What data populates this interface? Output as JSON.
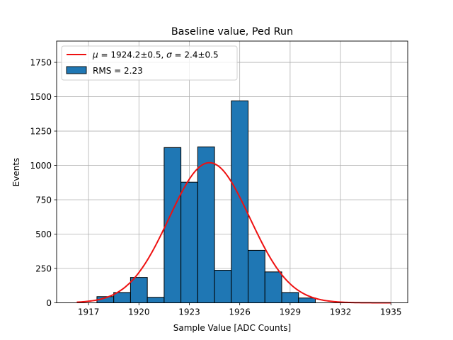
{
  "chart_data": {
    "type": "bar",
    "title": "Baseline value, Ped Run",
    "xlabel": "Sample Value [ADC Counts]",
    "ylabel": "Events",
    "xlim": [
      1915.1,
      1936.0
    ],
    "ylim": [
      0,
      1905
    ],
    "xticks": [
      1917,
      1920,
      1923,
      1926,
      1929,
      1932,
      1935
    ],
    "yticks": [
      0,
      250,
      500,
      750,
      1000,
      1250,
      1500,
      1750
    ],
    "grid": true,
    "bins": [
      {
        "x0": 1917.5,
        "x1": 1918.5,
        "value": 45
      },
      {
        "x0": 1918.5,
        "x1": 1919.5,
        "value": 75
      },
      {
        "x0": 1919.5,
        "x1": 1920.5,
        "value": 185
      },
      {
        "x0": 1920.5,
        "x1": 1921.5,
        "value": 40
      },
      {
        "x0": 1921.5,
        "x1": 1922.5,
        "value": 1130
      },
      {
        "x0": 1922.5,
        "x1": 1923.5,
        "value": 878
      },
      {
        "x0": 1923.5,
        "x1": 1924.5,
        "value": 1135
      },
      {
        "x0": 1924.5,
        "x1": 1925.5,
        "value": 237
      },
      {
        "x0": 1925.5,
        "x1": 1926.5,
        "value": 1470
      },
      {
        "x0": 1926.5,
        "x1": 1927.5,
        "value": 382
      },
      {
        "x0": 1927.5,
        "x1": 1928.5,
        "value": 225
      },
      {
        "x0": 1928.5,
        "x1": 1929.5,
        "value": 75
      },
      {
        "x0": 1929.5,
        "x1": 1930.5,
        "value": 35
      }
    ],
    "fit": {
      "function": "gaussian",
      "mu": 1924.2,
      "sigma": 2.4,
      "amplitude": 1020,
      "x_range": [
        1916.3,
        1935.0
      ],
      "color": "#ee1111"
    },
    "bar_color": "#1f77b4",
    "legend": {
      "position": "top-left",
      "fit_label": "$\\mu = 1924.2 \\pm 0.5$, $\\sigma = 2.4 \\pm 0.5$",
      "fit_label_parts": {
        "mu_symbol": "μ",
        "mu_text": " = 1924.2±0.5, ",
        "sigma_symbol": "σ",
        "sigma_text": " = 2.4±0.5"
      },
      "hist_label": "RMS = 2.23"
    }
  }
}
